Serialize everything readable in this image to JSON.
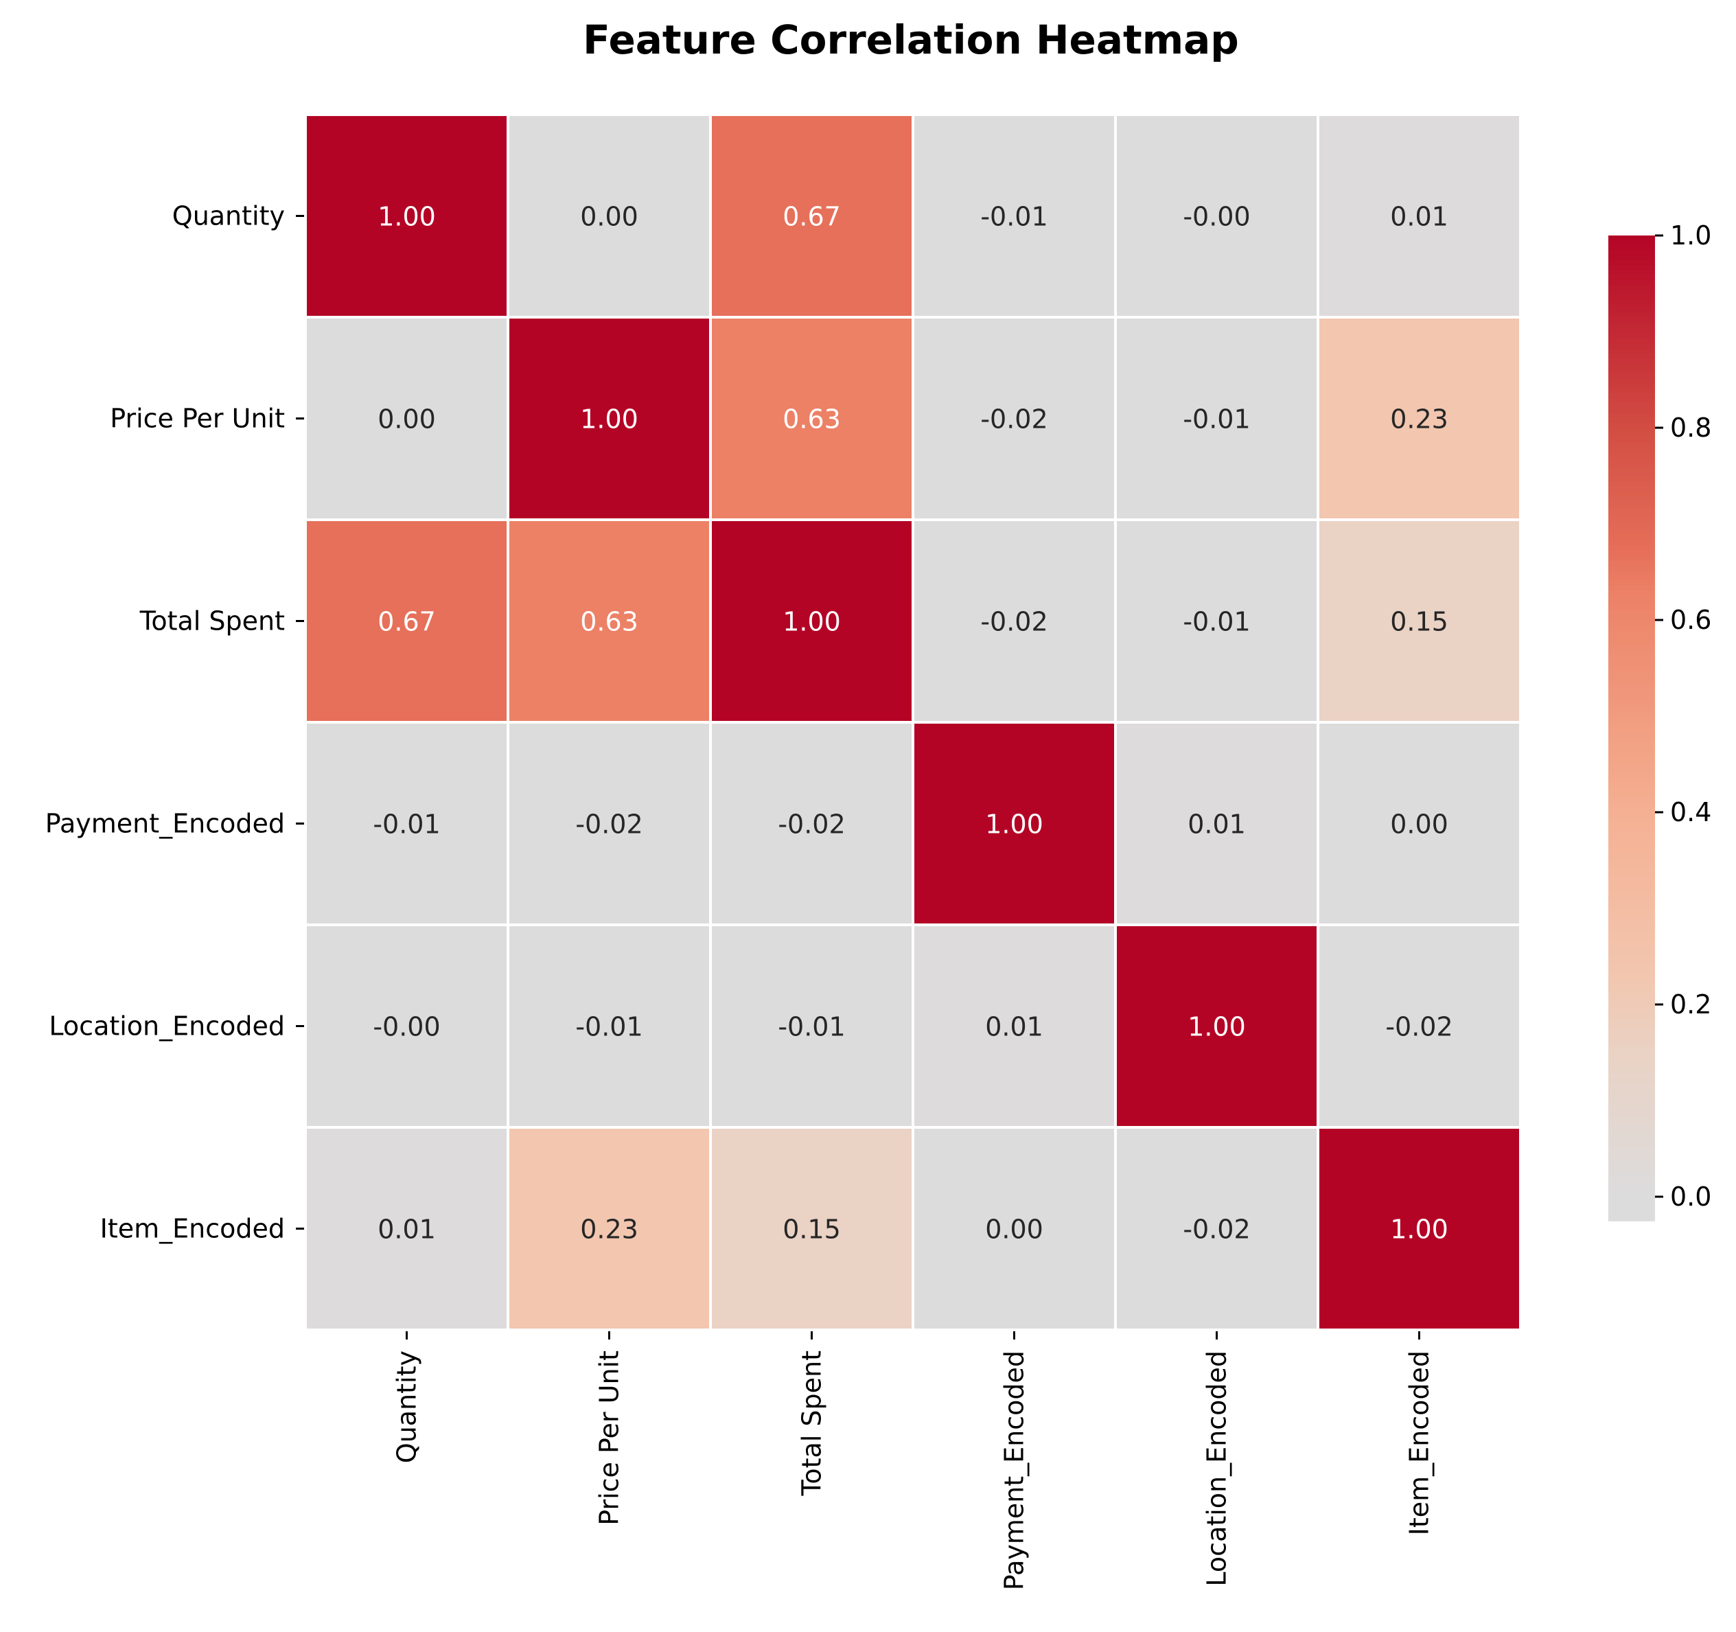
{
  "chart_data": {
    "type": "heatmap",
    "title": "Feature Correlation Heatmap",
    "row_labels": [
      "Quantity",
      "Price Per Unit",
      "Total Spent",
      "Payment_Encoded",
      "Location_Encoded",
      "Item_Encoded"
    ],
    "col_labels": [
      "Quantity",
      "Price Per Unit",
      "Total Spent",
      "Payment_Encoded",
      "Location_Encoded",
      "Item_Encoded"
    ],
    "values": [
      [
        1.0,
        0.0,
        0.67,
        -0.01,
        -0.0,
        0.01
      ],
      [
        0.0,
        1.0,
        0.63,
        -0.02,
        -0.01,
        0.23
      ],
      [
        0.67,
        0.63,
        1.0,
        -0.02,
        -0.01,
        0.15
      ],
      [
        -0.01,
        -0.02,
        -0.02,
        1.0,
        0.01,
        0.0
      ],
      [
        -0.0,
        -0.01,
        -0.01,
        0.01,
        1.0,
        -0.02
      ],
      [
        0.01,
        0.23,
        0.15,
        0.0,
        -0.02,
        1.0
      ]
    ],
    "value_labels": [
      [
        "1.00",
        "0.00",
        "0.67",
        "-0.01",
        "-0.00",
        "0.01"
      ],
      [
        "0.00",
        "1.00",
        "0.63",
        "-0.02",
        "-0.01",
        "0.23"
      ],
      [
        "0.67",
        "0.63",
        "1.00",
        "-0.02",
        "-0.01",
        "0.15"
      ],
      [
        "-0.01",
        "-0.02",
        "-0.02",
        "1.00",
        "0.01",
        "0.00"
      ],
      [
        "-0.00",
        "-0.01",
        "-0.01",
        "0.01",
        "1.00",
        "-0.02"
      ],
      [
        "0.01",
        "0.23",
        "0.15",
        "0.00",
        "-0.02",
        "1.00"
      ]
    ],
    "colorbar": {
      "range": [
        -0.025,
        1.0
      ],
      "ticks": [
        0.0,
        0.2,
        0.4,
        0.6,
        0.8,
        1.0
      ],
      "tick_labels": [
        "0.0",
        "0.2",
        "0.4",
        "0.6",
        "0.8",
        "1.0"
      ]
    },
    "colormap": "coolwarm",
    "color_stops": [
      {
        "value": -0.025,
        "color": "#dddcdc"
      },
      {
        "value": 0.0,
        "color": "#dcdcdd"
      },
      {
        "value": 0.15,
        "color": "#ead2c4"
      },
      {
        "value": 0.23,
        "color": "#f2c6af"
      },
      {
        "value": 0.4,
        "color": "#f5b093"
      },
      {
        "value": 0.63,
        "color": "#ec8166"
      },
      {
        "value": 0.67,
        "color": "#e6705a"
      },
      {
        "value": 0.8,
        "color": "#d24d43"
      },
      {
        "value": 1.0,
        "color": "#b40426"
      }
    ],
    "gridlines_color": "#ffffff"
  }
}
